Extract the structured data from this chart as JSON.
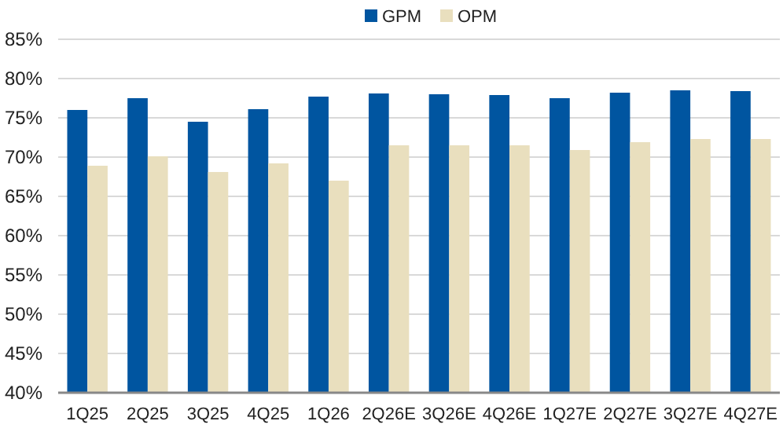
{
  "chart_data": {
    "type": "bar",
    "categories": [
      "1Q25",
      "2Q25",
      "3Q25",
      "4Q25",
      "1Q26",
      "2Q26E",
      "3Q26E",
      "4Q26E",
      "1Q27E",
      "2Q27E",
      "3Q27E",
      "4Q27E"
    ],
    "series": [
      {
        "name": "GPM",
        "color": "#0055a0",
        "values": [
          76.0,
          77.5,
          74.5,
          76.1,
          77.7,
          78.1,
          78.0,
          77.9,
          77.5,
          78.2,
          78.5,
          78.4
        ]
      },
      {
        "name": "OPM",
        "color": "#e9dfbe",
        "values": [
          68.9,
          70.1,
          68.1,
          69.2,
          67.0,
          71.5,
          71.5,
          71.5,
          70.9,
          71.9,
          72.3,
          72.3
        ]
      }
    ],
    "ylim": [
      40,
      85
    ],
    "yticks": [
      {
        "value": 40,
        "label": "40%"
      },
      {
        "value": 45,
        "label": "45%"
      },
      {
        "value": 50,
        "label": "50%"
      },
      {
        "value": 55,
        "label": "55%"
      },
      {
        "value": 60,
        "label": "60%"
      },
      {
        "value": 65,
        "label": "65%"
      },
      {
        "value": 70,
        "label": "70%"
      },
      {
        "value": 75,
        "label": "75%"
      },
      {
        "value": 80,
        "label": "80%"
      },
      {
        "value": 85,
        "label": "85%"
      }
    ],
    "grid": "y",
    "legend": "top"
  }
}
